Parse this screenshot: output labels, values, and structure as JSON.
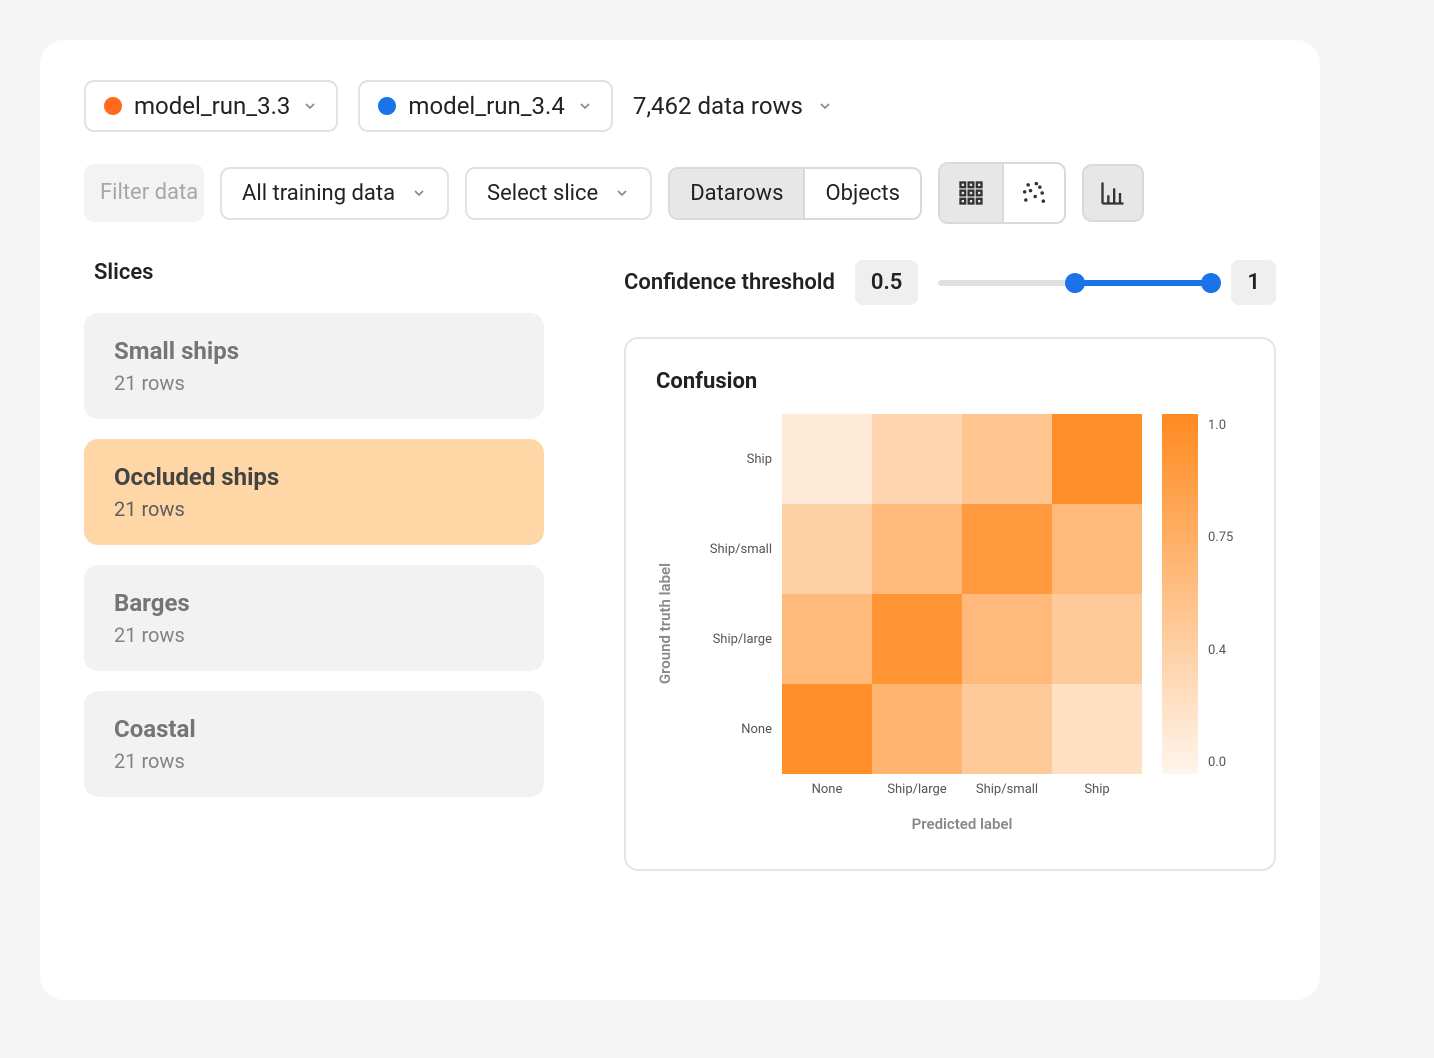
{
  "top": {
    "model_a": {
      "label": "model_run_3.3",
      "color": "#ff6b1a"
    },
    "model_b": {
      "label": "model_run_3.4",
      "color": "#1a73e8"
    },
    "data_rows": "7,462 data rows"
  },
  "toolbar": {
    "filter_placeholder": "Filter data",
    "training_data": "All training data",
    "select_slice": "Select slice",
    "view_datarows": "Datarows",
    "view_objects": "Objects"
  },
  "threshold": {
    "label": "Confidence threshold",
    "low": "0.5",
    "high": "1",
    "slider_start_pct": 50,
    "track_color": "#e0e0e0",
    "fill_color": "#1a73e8",
    "handle_color": "#1a73e8"
  },
  "slices": {
    "title": "Slices",
    "items": [
      {
        "name": "Small ships",
        "rows": "21 rows",
        "selected": false
      },
      {
        "name": "Occluded ships",
        "rows": "21 rows",
        "selected": true
      },
      {
        "name": "Barges",
        "rows": "21 rows",
        "selected": false
      },
      {
        "name": "Coastal",
        "rows": "21 rows",
        "selected": false
      }
    ],
    "normal_bg": "#f2f2f2",
    "selected_bg": "#ffd6a5"
  },
  "confusion": {
    "title": "Confusion",
    "y_axis": "Ground truth label",
    "x_axis": "Predicted label",
    "row_labels": [
      "Ship",
      "Ship/small",
      "Ship/large",
      "None"
    ],
    "col_labels": [
      "None",
      "Ship/large",
      "Ship/small",
      "Ship"
    ],
    "values": [
      [
        0.1,
        0.3,
        0.45,
        0.95
      ],
      [
        0.35,
        0.55,
        0.85,
        0.55
      ],
      [
        0.55,
        0.9,
        0.55,
        0.4
      ],
      [
        0.95,
        0.6,
        0.4,
        0.2
      ]
    ],
    "color_min": "#fff5ec",
    "color_max": "#ff8a1f",
    "colorbar_ticks": [
      "1.0",
      "0.75",
      "0.4",
      "0.0"
    ],
    "cell_size": 90
  }
}
